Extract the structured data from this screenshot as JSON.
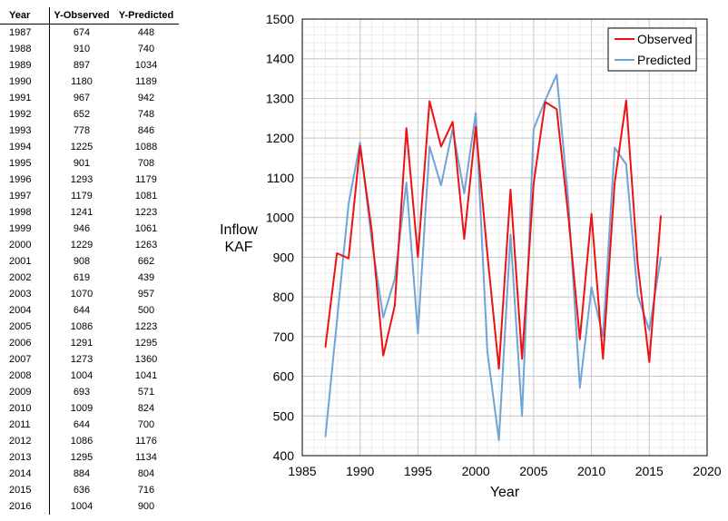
{
  "table": {
    "headers": [
      "Year",
      "Y-Observed",
      "Y-Predicted"
    ],
    "rows": [
      [
        "1987",
        "674",
        "448"
      ],
      [
        "1988",
        "910",
        "740"
      ],
      [
        "1989",
        "897",
        "1034"
      ],
      [
        "1990",
        "1180",
        "1189"
      ],
      [
        "1991",
        "967",
        "942"
      ],
      [
        "1992",
        "652",
        "748"
      ],
      [
        "1993",
        "778",
        "846"
      ],
      [
        "1994",
        "1225",
        "1088"
      ],
      [
        "1995",
        "901",
        "708"
      ],
      [
        "1996",
        "1293",
        "1179"
      ],
      [
        "1997",
        "1179",
        "1081"
      ],
      [
        "1998",
        "1241",
        "1223"
      ],
      [
        "1999",
        "946",
        "1061"
      ],
      [
        "2000",
        "1229",
        "1263"
      ],
      [
        "2001",
        "908",
        "662"
      ],
      [
        "2002",
        "619",
        "439"
      ],
      [
        "2003",
        "1070",
        "957"
      ],
      [
        "2004",
        "644",
        "500"
      ],
      [
        "2005",
        "1086",
        "1223"
      ],
      [
        "2006",
        "1291",
        "1295"
      ],
      [
        "2007",
        "1273",
        "1360"
      ],
      [
        "2008",
        "1004",
        "1041"
      ],
      [
        "2009",
        "693",
        "571"
      ],
      [
        "2010",
        "1009",
        "824"
      ],
      [
        "2011",
        "644",
        "700"
      ],
      [
        "2012",
        "1086",
        "1176"
      ],
      [
        "2013",
        "1295",
        "1134"
      ],
      [
        "2014",
        "884",
        "804"
      ],
      [
        "2015",
        "636",
        "716"
      ],
      [
        "2016",
        "1004",
        "900"
      ]
    ]
  },
  "chart_data": {
    "type": "line",
    "xlabel": "Year",
    "ylabel_lines": [
      "Inflow",
      "KAF"
    ],
    "xlim": [
      1985,
      2020
    ],
    "ylim": [
      400,
      1500
    ],
    "xticks": [
      1985,
      1990,
      1995,
      2000,
      2005,
      2010,
      2015,
      2020
    ],
    "yticks": [
      400,
      500,
      600,
      700,
      800,
      900,
      1000,
      1100,
      1200,
      1300,
      1400,
      1500
    ],
    "grid": true,
    "legend_position": "top-right",
    "x": [
      1987,
      1988,
      1989,
      1990,
      1991,
      1992,
      1993,
      1994,
      1995,
      1996,
      1997,
      1998,
      1999,
      2000,
      2001,
      2002,
      2003,
      2004,
      2005,
      2006,
      2007,
      2008,
      2009,
      2010,
      2011,
      2012,
      2013,
      2014,
      2015,
      2016
    ],
    "series": [
      {
        "name": "Observed",
        "color": "#ee1111",
        "values": [
          674,
          910,
          897,
          1180,
          967,
          652,
          778,
          1225,
          901,
          1293,
          1179,
          1241,
          946,
          1229,
          908,
          619,
          1070,
          644,
          1086,
          1291,
          1273,
          1004,
          693,
          1009,
          644,
          1086,
          1295,
          884,
          636,
          1004
        ]
      },
      {
        "name": "Predicted",
        "color": "#6fa4d6",
        "values": [
          448,
          740,
          1034,
          1189,
          942,
          748,
          846,
          1088,
          708,
          1179,
          1081,
          1223,
          1061,
          1263,
          662,
          439,
          957,
          500,
          1223,
          1295,
          1360,
          1041,
          571,
          824,
          700,
          1176,
          1134,
          804,
          716,
          900
        ]
      }
    ]
  }
}
